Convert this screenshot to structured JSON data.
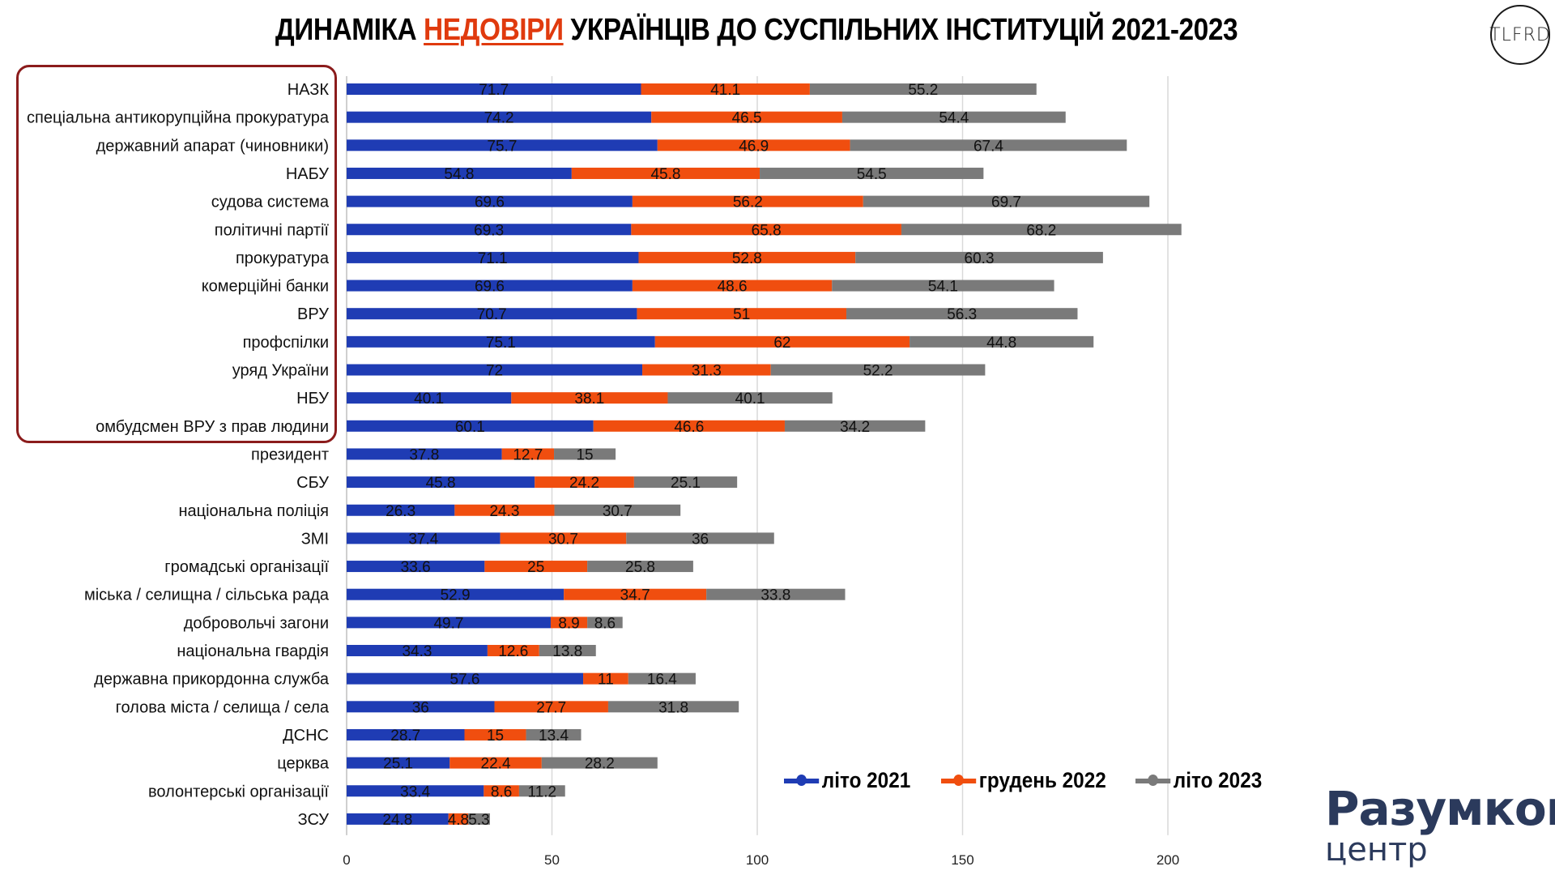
{
  "title": {
    "part1": "ДИНАМІКА ",
    "highlight": "НЕДОВІРИ",
    "part2": " УКРАЇНЦІВ ДО СУСПІЛЬНИХ ІНСТИТУЦІЙ 2021-2023"
  },
  "logos": {
    "tlfrd": "TLFRD",
    "razumkov_line1": "Разумков",
    "razumkov_line2": "центр"
  },
  "colors": {
    "title_highlight": "#e03a0e",
    "series_2021": "#1f3cb4",
    "series_2022": "#f04e0f",
    "series_2023": "#7a7a7a",
    "highlight_box": "#8b1c1c",
    "brand": "#2b3a5c"
  },
  "chart_data": {
    "type": "bar",
    "orientation": "horizontal",
    "stacked": true,
    "categories": [
      "НАЗК",
      "спеціальна антикорупційна прокуратура",
      "державний апарат (чиновники)",
      "НАБУ",
      "судова система",
      "політичні партії",
      "прокуратура",
      "комерційні банки",
      "ВРУ",
      "профспілки",
      "уряд України",
      "НБУ",
      "омбудсмен ВРУ з прав людини",
      "президент",
      "СБУ",
      "національна поліція",
      "ЗМІ",
      "громадські організації",
      "міська / селищна / сільська рада",
      "добровольчі загони",
      "національна гвардія",
      "державна прикордонна служба",
      "голова міста / селища / села",
      "ДСНС",
      "церква",
      "волонтерські організації",
      "ЗСУ"
    ],
    "series": [
      {
        "name": "літо 2021",
        "values": [
          71.7,
          74.2,
          75.7,
          54.8,
          69.6,
          69.3,
          71.1,
          69.6,
          70.7,
          75.1,
          72,
          40.1,
          60.1,
          37.8,
          45.8,
          26.3,
          37.4,
          33.6,
          52.9,
          49.7,
          34.3,
          57.6,
          36,
          28.7,
          25.1,
          33.4,
          24.8
        ]
      },
      {
        "name": "грудень 2022",
        "values": [
          41.1,
          46.5,
          46.9,
          45.8,
          56.2,
          65.8,
          52.8,
          48.6,
          51,
          62,
          31.3,
          38.1,
          46.6,
          12.7,
          24.2,
          24.3,
          30.7,
          25,
          34.7,
          8.9,
          12.6,
          11,
          27.7,
          15,
          22.4,
          8.6,
          4.8
        ]
      },
      {
        "name": "літо 2023",
        "values": [
          55.2,
          54.4,
          67.4,
          54.5,
          69.7,
          68.2,
          60.3,
          54.1,
          56.3,
          44.8,
          52.2,
          40.1,
          34.2,
          15,
          25.1,
          30.7,
          36,
          25.8,
          33.8,
          8.6,
          13.8,
          16.4,
          31.8,
          13.4,
          28.2,
          11.2,
          5.3
        ]
      }
    ],
    "xlim": [
      0,
      210
    ],
    "xticks": [
      "0",
      "50",
      "100",
      "150",
      "200"
    ],
    "xtick_values": [
      0,
      50,
      100,
      150,
      200
    ],
    "grid": "vertical",
    "legend_position": "bottom-right",
    "data_labels": true
  }
}
